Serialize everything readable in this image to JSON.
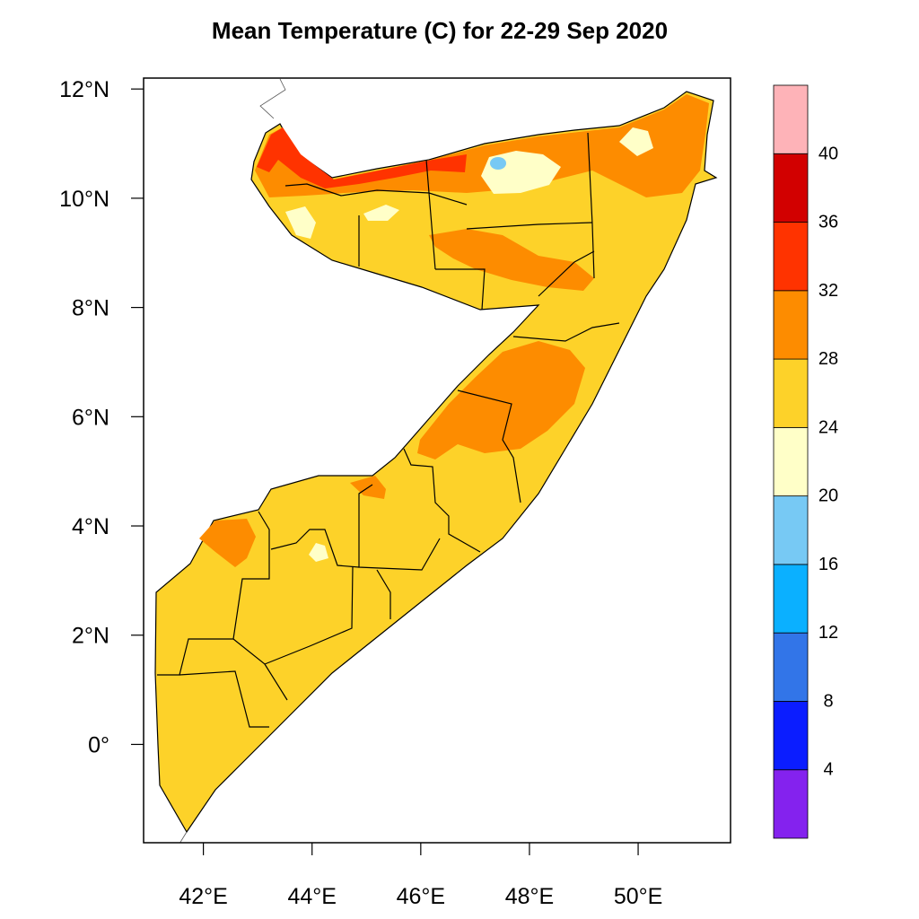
{
  "title": "Mean Temperature (C) for 22-29 Sep 2020",
  "map": {
    "lon_range": [
      40.9,
      51.7
    ],
    "lat_range": [
      -1.8,
      12.2
    ],
    "x_ticks": [
      {
        "lon": 42,
        "label": "42°E"
      },
      {
        "lon": 44,
        "label": "44°E"
      },
      {
        "lon": 46,
        "label": "46°E"
      },
      {
        "lon": 48,
        "label": "48°E"
      },
      {
        "lon": 50,
        "label": "50°E"
      }
    ],
    "y_ticks": [
      {
        "lat": 12,
        "label": "12°N"
      },
      {
        "lat": 10,
        "label": "10°N"
      },
      {
        "lat": 8,
        "label": "8°N"
      },
      {
        "lat": 6,
        "label": "6°N"
      },
      {
        "lat": 4,
        "label": "4°N"
      },
      {
        "lat": 2,
        "label": "2°N"
      },
      {
        "lat": 0,
        "label": "0°"
      }
    ]
  },
  "colorbar": {
    "bins": [
      {
        "min": 0,
        "max": 4,
        "color": "#8422ee"
      },
      {
        "min": 4,
        "max": 8,
        "color": "#0b1dff"
      },
      {
        "min": 8,
        "max": 12,
        "color": "#3275e8"
      },
      {
        "min": 12,
        "max": 16,
        "color": "#0bb0ff"
      },
      {
        "min": 16,
        "max": 20,
        "color": "#77c9f4"
      },
      {
        "min": 20,
        "max": 24,
        "color": "#ffffc8"
      },
      {
        "min": 24,
        "max": 28,
        "color": "#fdd229"
      },
      {
        "min": 28,
        "max": 32,
        "color": "#fd8c00"
      },
      {
        "min": 32,
        "max": 36,
        "color": "#ff3300"
      },
      {
        "min": 36,
        "max": 40,
        "color": "#d20000"
      },
      {
        "min": 40,
        "max": 44,
        "color": "#feb3b8"
      }
    ],
    "labels": [
      "4",
      "8",
      "12",
      "16",
      "20",
      "24",
      "28",
      "32",
      "36",
      "40"
    ]
  }
}
